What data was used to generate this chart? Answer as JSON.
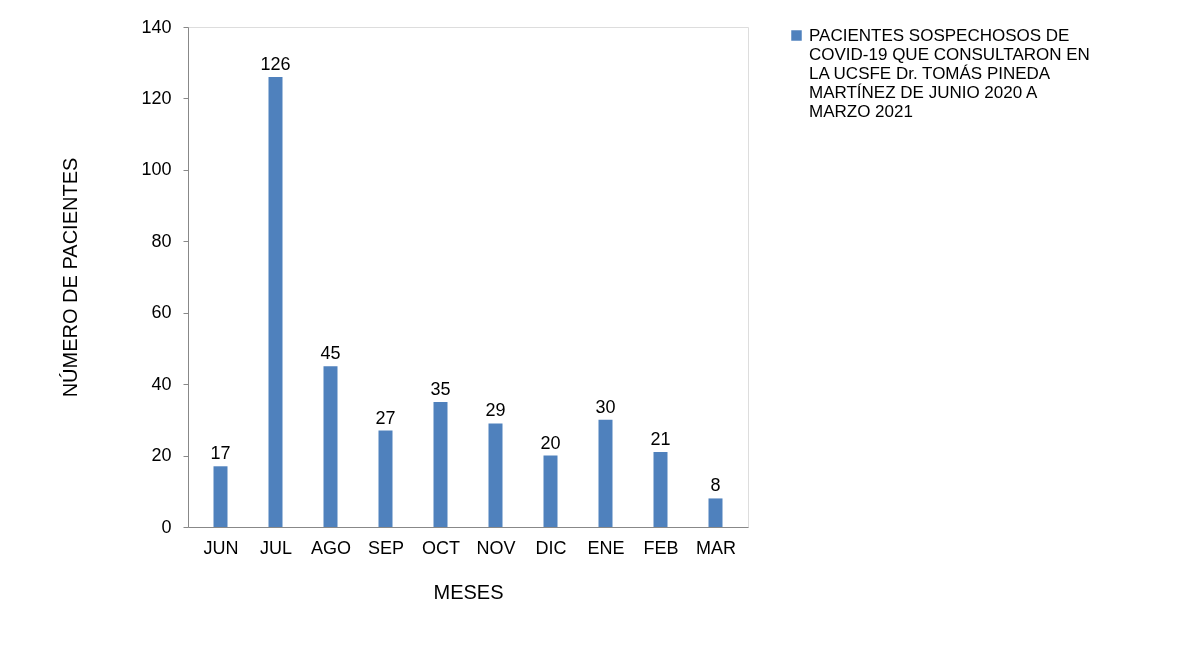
{
  "chart_data": {
    "type": "bar",
    "xlabel": "MESES",
    "ylabel": "NÚMERO DE PACIENTES",
    "categories": [
      "JUN",
      "JUL",
      "AGO",
      "SEP",
      "OCT",
      "NOV",
      "DIC",
      "ENE",
      "FEB",
      "MAR"
    ],
    "series": [
      {
        "name": "PACIENTES SOSPECHOSOS DE COVID-19 QUE CONSULTARON EN LA UCSFE Dr. TOMÁS PINEDA MARTÍNEZ DE JUNIO 2020 A MARZO 2021",
        "color": "#4f81bd",
        "values": [
          17,
          126,
          45,
          27,
          35,
          29,
          20,
          30,
          21,
          8
        ]
      }
    ],
    "ylim": [
      0,
      140
    ],
    "yticks": [
      0,
      20,
      40,
      60,
      80,
      100,
      120,
      140
    ],
    "data_labels": true,
    "grid": false,
    "legend": "right"
  }
}
